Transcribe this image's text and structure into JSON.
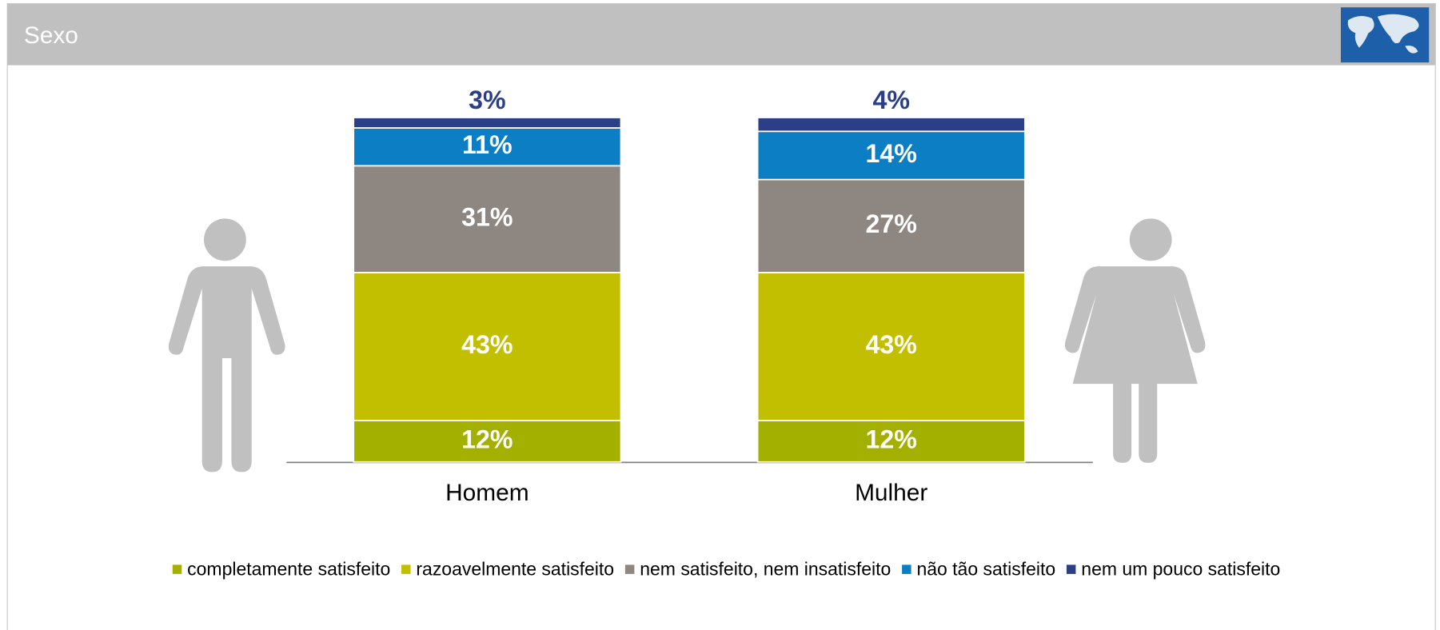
{
  "chart_data": {
    "type": "stacked_bar",
    "title": "Sexo",
    "categories": [
      "Homem",
      "Mulher"
    ],
    "ylim": [
      0,
      100
    ],
    "series": [
      {
        "name": "completamente satisfeito",
        "color": "#a3b000",
        "values": [
          12,
          12
        ],
        "value_labels": [
          "12%",
          "12%"
        ]
      },
      {
        "name": "razoavelmente satisfeito",
        "color": "#c2bf00",
        "values": [
          43,
          43
        ],
        "value_labels": [
          "43%",
          "43%"
        ]
      },
      {
        "name": "nem satisfeito, nem insatisfeito",
        "color": "#8e8680",
        "values": [
          31,
          27
        ],
        "value_labels": [
          "31%",
          "27%"
        ]
      },
      {
        "name": "não tão satisfeito",
        "color": "#0b7ec4",
        "values": [
          11,
          14
        ],
        "value_labels": [
          "11%",
          "14%"
        ]
      },
      {
        "name": "nem um pouco satisfeito",
        "color": "#2b3f87",
        "values": [
          3,
          4
        ],
        "value_labels": [
          "3%",
          "4%"
        ]
      }
    ]
  }
}
